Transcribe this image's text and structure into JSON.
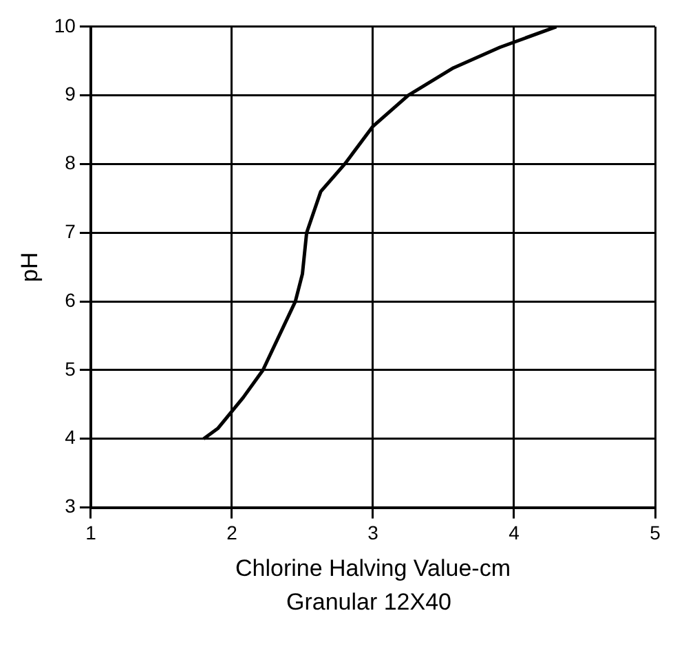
{
  "chart_data": {
    "type": "line",
    "xlabel": "Chlorine Halving Value-cm",
    "ylabel": "pH",
    "annotations": [
      "Granular 12X40"
    ],
    "x": [
      1.8,
      1.9,
      2.08,
      2.22,
      2.45,
      2.5,
      2.53,
      2.63,
      2.8,
      3.0,
      3.25,
      3.57,
      3.9,
      4.3
    ],
    "series": [
      {
        "color": "#000000",
        "values": [
          4.0,
          4.15,
          4.6,
          5.0,
          6.0,
          6.4,
          7.0,
          7.6,
          8.0,
          8.55,
          9.0,
          9.4,
          9.7,
          10.0
        ]
      }
    ],
    "xlim": [
      1,
      5
    ],
    "xticks": [
      1,
      2,
      3,
      4,
      5
    ],
    "ylim": [
      3,
      10
    ],
    "yticks": [
      3,
      4,
      5,
      6,
      7,
      8,
      9,
      10
    ],
    "grid": true,
    "legend": false,
    "marker": "none",
    "line_style": "solid"
  }
}
